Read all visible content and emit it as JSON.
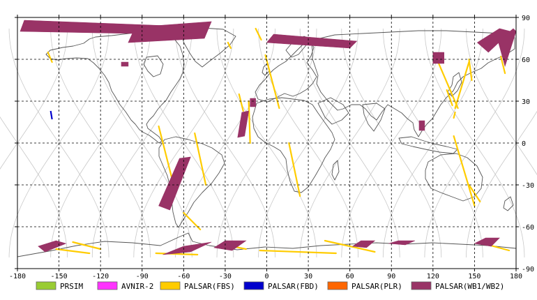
{
  "map": {
    "x_ticks": [
      {
        "lon": -180,
        "label": "-180"
      },
      {
        "lon": -150,
        "label": "-150"
      },
      {
        "lon": -120,
        "label": "-120"
      },
      {
        "lon": -90,
        "label": "-90"
      },
      {
        "lon": -60,
        "label": "-60"
      },
      {
        "lon": -30,
        "label": "-30"
      },
      {
        "lon": 0,
        "label": "0"
      },
      {
        "lon": 30,
        "label": "30"
      },
      {
        "lon": 60,
        "label": "60"
      },
      {
        "lon": 90,
        "label": "90"
      },
      {
        "lon": 120,
        "label": "120"
      },
      {
        "lon": 150,
        "label": "150"
      },
      {
        "lon": 180,
        "label": "180"
      }
    ],
    "y_ticks": [
      {
        "lat": 90,
        "label": "90"
      },
      {
        "lat": 60,
        "label": "60"
      },
      {
        "lat": 30,
        "label": "30"
      },
      {
        "lat": 0,
        "label": "0"
      },
      {
        "lat": -30,
        "label": "-30"
      },
      {
        "lat": -60,
        "label": "-60"
      },
      {
        "lat": -90,
        "label": "-90"
      }
    ]
  },
  "legend": [
    {
      "label": "PRSIM",
      "color": "#99cc33"
    },
    {
      "label": "AVNIR-2",
      "color": "#ff33ff"
    },
    {
      "label": "PALSAR(FBS)",
      "color": "#ffcc00"
    },
    {
      "label": "PALSAR(FBD)",
      "color": "#0000cc"
    },
    {
      "label": "PALSAR(PLR)",
      "color": "#ff6600"
    },
    {
      "label": "PALSAR(WB1/WB2)",
      "color": "#993366"
    }
  ],
  "colors": {
    "grid": "#000000",
    "coast": "#555555",
    "orbit": "#c8c8c8",
    "fbs": "#ffcc00",
    "fbd": "#0000cc",
    "wb": "#993366"
  },
  "fbs_tracks": [
    [
      [
        -158,
        65
      ],
      [
        -155,
        58
      ]
    ],
    [
      [
        -28,
        72
      ],
      [
        -26,
        68
      ]
    ],
    [
      [
        -8,
        82
      ],
      [
        -4,
        74
      ]
    ],
    [
      [
        -1,
        63
      ],
      [
        9,
        25
      ]
    ],
    [
      [
        -20,
        35
      ],
      [
        -17,
        23
      ]
    ],
    [
      [
        -13,
        30
      ],
      [
        -12,
        0
      ]
    ],
    [
      [
        -78,
        12
      ],
      [
        -66,
        -35
      ]
    ],
    [
      [
        -52,
        7
      ],
      [
        -44,
        -30
      ]
    ],
    [
      [
        -60,
        -50
      ],
      [
        -48,
        -62
      ]
    ],
    [
      [
        16,
        0
      ],
      [
        24,
        -38
      ]
    ],
    [
      [
        -140,
        -71
      ],
      [
        -120,
        -76
      ]
    ],
    [
      [
        -152,
        -76
      ],
      [
        -128,
        -79
      ]
    ],
    [
      [
        -80,
        -79
      ],
      [
        -50,
        -80
      ]
    ],
    [
      [
        -30,
        -73
      ],
      [
        -15,
        -76
      ]
    ],
    [
      [
        -5,
        -77
      ],
      [
        50,
        -79
      ]
    ],
    [
      [
        42,
        -70
      ],
      [
        78,
        -78
      ]
    ],
    [
      [
        122,
        62
      ],
      [
        138,
        25
      ]
    ],
    [
      [
        130,
        38
      ],
      [
        134,
        27
      ]
    ],
    [
      [
        146,
        60
      ],
      [
        148,
        45
      ]
    ],
    [
      [
        146,
        58
      ],
      [
        136,
        25
      ]
    ],
    [
      [
        136,
        22
      ],
      [
        135,
        18
      ]
    ],
    [
      [
        169,
        62
      ],
      [
        172,
        50
      ]
    ],
    [
      [
        135,
        5
      ],
      [
        150,
        -45
      ]
    ],
    [
      [
        146,
        -30
      ],
      [
        154,
        -42
      ]
    ],
    [
      [
        160,
        -73
      ],
      [
        175,
        -77
      ]
    ]
  ],
  "fbd_tracks": [
    [
      [
        -156,
        23
      ],
      [
        -155,
        17
      ]
    ]
  ],
  "wb_swaths": [
    [
      [
        -175,
        88
      ],
      [
        -70,
        84
      ],
      [
        -70,
        78
      ],
      [
        -178,
        80
      ]
    ],
    [
      [
        -95,
        83
      ],
      [
        -40,
        87
      ],
      [
        -45,
        75
      ],
      [
        -100,
        72
      ]
    ],
    [
      [
        5,
        78
      ],
      [
        65,
        73
      ],
      [
        60,
        68
      ],
      [
        0,
        72
      ]
    ],
    [
      [
        -152,
        -70
      ],
      [
        -145,
        -72
      ],
      [
        -160,
        -78
      ],
      [
        -165,
        -74
      ]
    ],
    [
      [
        -105,
        58
      ],
      [
        -100,
        58
      ],
      [
        -100,
        55
      ],
      [
        -105,
        55
      ]
    ],
    [
      [
        -63,
        -11
      ],
      [
        -55,
        -10
      ],
      [
        -70,
        -48
      ],
      [
        -78,
        -45
      ]
    ],
    [
      [
        -60,
        -74
      ],
      [
        -40,
        -71
      ],
      [
        -55,
        -78
      ],
      [
        -75,
        -80
      ]
    ],
    [
      [
        -30,
        -70
      ],
      [
        -15,
        -70
      ],
      [
        -25,
        -77
      ],
      [
        -38,
        -75
      ]
    ],
    [
      [
        68,
        -70
      ],
      [
        78,
        -70
      ],
      [
        72,
        -75
      ],
      [
        62,
        -74
      ]
    ],
    [
      [
        95,
        -70
      ],
      [
        107,
        -70
      ],
      [
        100,
        -73
      ],
      [
        88,
        -72
      ]
    ],
    [
      [
        158,
        -68
      ],
      [
        168,
        -68
      ],
      [
        162,
        -74
      ],
      [
        150,
        -72
      ]
    ],
    [
      [
        -18,
        22
      ],
      [
        -13,
        23
      ],
      [
        -16,
        5
      ],
      [
        -21,
        4
      ]
    ],
    [
      [
        -12,
        32
      ],
      [
        -8,
        32
      ],
      [
        -8,
        26
      ],
      [
        -12,
        26
      ]
    ],
    [
      [
        120,
        65
      ],
      [
        128,
        65
      ],
      [
        128,
        57
      ],
      [
        120,
        57
      ]
    ],
    [
      [
        110,
        16
      ],
      [
        114,
        16
      ],
      [
        114,
        9
      ],
      [
        110,
        9
      ]
    ],
    [
      [
        152,
        72
      ],
      [
        168,
        82
      ],
      [
        176,
        80
      ],
      [
        160,
        65
      ]
    ],
    [
      [
        167,
        73
      ],
      [
        178,
        82
      ],
      [
        184,
        80
      ],
      [
        172,
        55
      ]
    ]
  ],
  "orbit_offsets": [
    -180,
    -150,
    -120,
    -90,
    -60,
    -30,
    0,
    30,
    60,
    90,
    120,
    150,
    180
  ]
}
